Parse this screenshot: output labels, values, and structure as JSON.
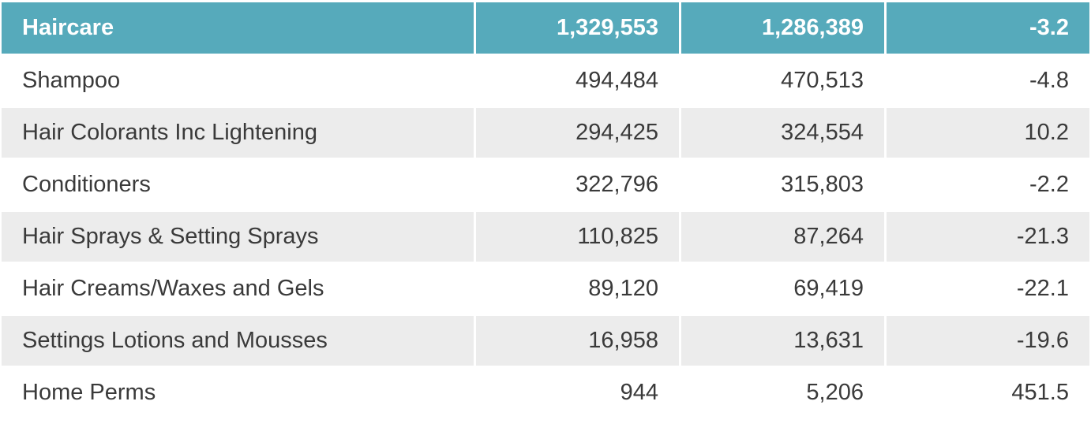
{
  "header": {
    "category": "Haircare",
    "value_1": "1,329,553",
    "value_2": "1,286,389",
    "change": "-3.2"
  },
  "rows": [
    {
      "category": "Shampoo",
      "value_1": "494,484",
      "value_2": "470,513",
      "change": "-4.8"
    },
    {
      "category": "Hair Colorants Inc Lightening",
      "value_1": "294,425",
      "value_2": "324,554",
      "change": "10.2"
    },
    {
      "category": "Conditioners",
      "value_1": "322,796",
      "value_2": "315,803",
      "change": "-2.2"
    },
    {
      "category": "Hair Sprays & Setting Sprays",
      "value_1": "110,825",
      "value_2": "87,264",
      "change": "-21.3"
    },
    {
      "category": "Hair Creams/Waxes and Gels",
      "value_1": "89,120",
      "value_2": "69,419",
      "change": "-22.1"
    },
    {
      "category": "Settings Lotions and Mousses",
      "value_1": "16,958",
      "value_2": "13,631",
      "change": "-19.6"
    },
    {
      "category": "Home Perms",
      "value_1": "944",
      "value_2": "5,206",
      "change": "451.5"
    }
  ],
  "colors": {
    "header_bg": "#56aabb",
    "header_text": "#ffffff",
    "stripe_bg": "#ececec",
    "body_text": "#3a3a3a"
  }
}
